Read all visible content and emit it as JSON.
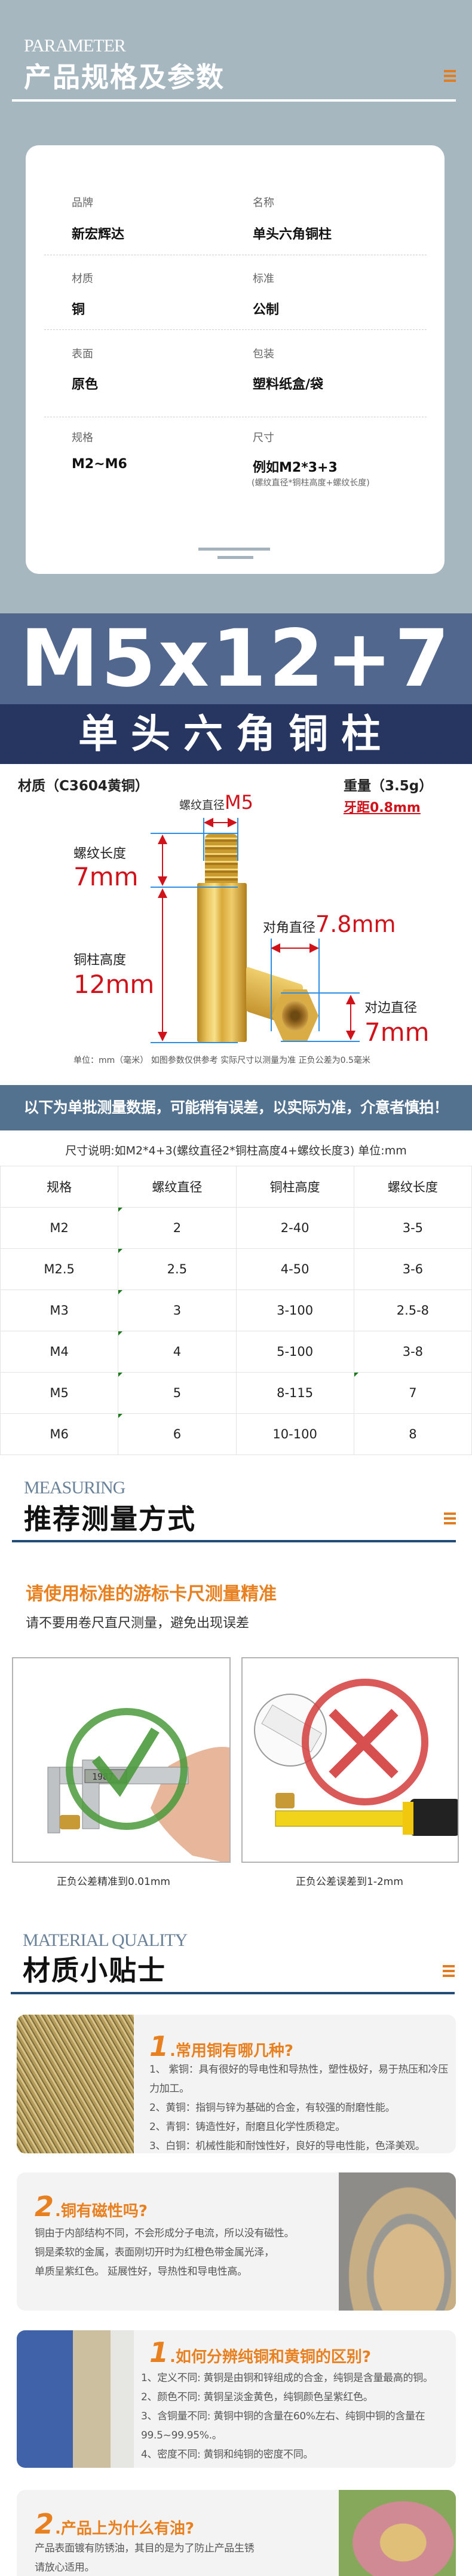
{
  "parameter": {
    "en_title": "PARAMETER",
    "title": "产品规格及参数",
    "menu_icon": "menu-icon",
    "rows": [
      {
        "left": {
          "label": "品牌",
          "value": "新宏辉达"
        },
        "right": {
          "label": "名称",
          "value": "单头六角铜柱"
        }
      },
      {
        "left": {
          "label": "材质",
          "value": "铜"
        },
        "right": {
          "label": "标准",
          "value": "公制"
        }
      },
      {
        "left": {
          "label": "表面",
          "value": "原色"
        },
        "right": {
          "label": "包装",
          "value": "塑料纸盒/袋"
        }
      },
      {
        "left": {
          "label": "规格",
          "value": "M2~M6"
        },
        "right": {
          "label": "尺寸",
          "value": "例如M2*3+3",
          "sub": "(螺纹直径*铜柱高度+螺纹长度)"
        }
      }
    ]
  },
  "banner": {
    "model": "M5x12+7",
    "name": "单头六角铜柱",
    "colors": {
      "top": "#51678d",
      "bottom": "#273660"
    }
  },
  "diagram": {
    "material": "材质（C3604黄铜）",
    "weight": "重量（3.5g）",
    "pitch": "牙距0.8mm",
    "thread_dia_label": "螺纹直径",
    "thread_dia_value": "M5",
    "thread_len_label": "螺纹长度",
    "thread_len_value": "7mm",
    "height_label": "铜柱高度",
    "height_value": "12mm",
    "diag_label": "对角直径",
    "diag_value": "7.8mm",
    "flat_label": "对边直径",
    "flat_value": "7mm",
    "note": "单位：mm（毫米） 如图参数仅供参考 实际尺寸以测量为准 正负公差为0.5毫米"
  },
  "spec_table": {
    "warning": "以下为单批测量数据，可能稍有误差，以实际为准，介意者慎拍！",
    "size_note": "尺寸说明:如M2*4+3(螺纹直径2*铜柱高度4+螺纹长度3) 单位:mm",
    "headers": [
      "规格",
      "螺纹直径",
      "铜柱高度",
      "螺纹长度"
    ],
    "rows": [
      [
        "M2",
        "2",
        "2-40",
        "3-5"
      ],
      [
        "M2.5",
        "2.5",
        "4-50",
        "3-6"
      ],
      [
        "M3",
        "3",
        "3-100",
        "2.5-8"
      ],
      [
        "M4",
        "4",
        "5-100",
        "3-8"
      ],
      [
        "M5",
        "5",
        "8-115",
        "7"
      ],
      [
        "M6",
        "6",
        "10-100",
        "8"
      ]
    ]
  },
  "measuring": {
    "en_title": "MEASURING",
    "title": "推荐测量方式",
    "headline": "请使用标准的游标卡尺测量精准",
    "subline": "请不要用卷尺直尺测量，避免出现误差",
    "good_caption": "正负公差精准到0.01mm",
    "bad_caption": "正负公差误差到1-2mm",
    "caliper_reading": "1987"
  },
  "material": {
    "en_title": "MATERIAL QUALITY",
    "title": "材质小贴士",
    "cards": [
      {
        "num": "1",
        "title": ".常用铜有哪几种?",
        "lines": [
          "1、 紫铜：具有很好的导电性和导热性，塑性极好，易于热压和冷压力加工。",
          "2、黄铜：指铜与锌为基础的合金，有较强的耐磨性能。",
          "2、青铜：铸造性好，耐磨且化学性质稳定。",
          "3、白铜：机械性能和耐蚀性好，良好的导电性能，色泽美观。"
        ]
      },
      {
        "num": "2",
        "title": ".铜有磁性吗?",
        "lines": [
          "铜由于内部结构不同，不会形成分子电流，所以没有磁性。",
          "铜是柔软的金属，表面刚切开时为红橙色带金属光泽，",
          "单质呈紫红色。 延展性好，导热性和导电性高。"
        ]
      },
      {
        "num": "1",
        "title": ".如何分辨纯铜和黄铜的区别?",
        "lines": [
          "1、定义不同: 黄铜是由铜和锌组成的合金，纯铜是含量最高的铜。",
          "2、颜色不同: 黄铜呈淡金黄色，纯铜颜色呈紫红色。",
          "3、含铜量不同: 黄铜中铜的含量在60%左右、纯铜中铜的含量在99.5~99.95%.。",
          "4、密度不同: 黄铜和纯铜的密度不同。"
        ]
      },
      {
        "num": "2",
        "title": ".产品上为什么有油?",
        "lines": [
          "产品表面镀有防锈油，其目的是为了防止产品生锈",
          "请放心适用。"
        ]
      }
    ]
  },
  "colors": {
    "accent_orange": "#e8801f",
    "header_bg": "#a6b7c0",
    "warning_bg": "#52728f",
    "dimension_red": "#d0121b"
  }
}
